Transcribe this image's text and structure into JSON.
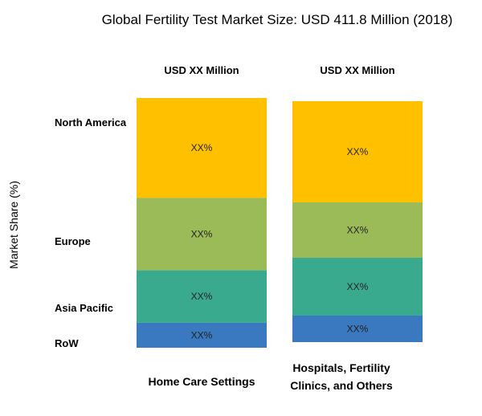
{
  "chart_data": {
    "type": "bar",
    "stacked": true,
    "title": "Global Fertility Test Market Size: USD 411.8 Million (2018)",
    "ylabel": "Market Share (%)",
    "xlabel": "",
    "categories": [
      {
        "label_lines": [
          "Home Care Settings"
        ],
        "header": "USD XX Million"
      },
      {
        "label_lines": [
          "Hospitals, Fertility",
          "Clinics, and Others"
        ],
        "header": "USD XX Million"
      }
    ],
    "series": [
      {
        "name": "North America",
        "color": "#FFC000",
        "values": [
          40,
          42
        ],
        "labels": [
          "XX%",
          "XX%"
        ]
      },
      {
        "name": "Europe",
        "color": "#9BBB59",
        "values": [
          29,
          23
        ],
        "labels": [
          "XX%",
          "XX%"
        ]
      },
      {
        "name": "Asia Pacific",
        "color": "#3AAA8F",
        "values": [
          21,
          24
        ],
        "labels": [
          "XX%",
          "XX%"
        ]
      },
      {
        "name": "RoW",
        "color": "#3A78BF",
        "values": [
          10,
          11
        ],
        "labels": [
          "XX%",
          "XX%"
        ]
      }
    ],
    "ylim": [
      0,
      100
    ],
    "grid": false,
    "legend": "left"
  }
}
